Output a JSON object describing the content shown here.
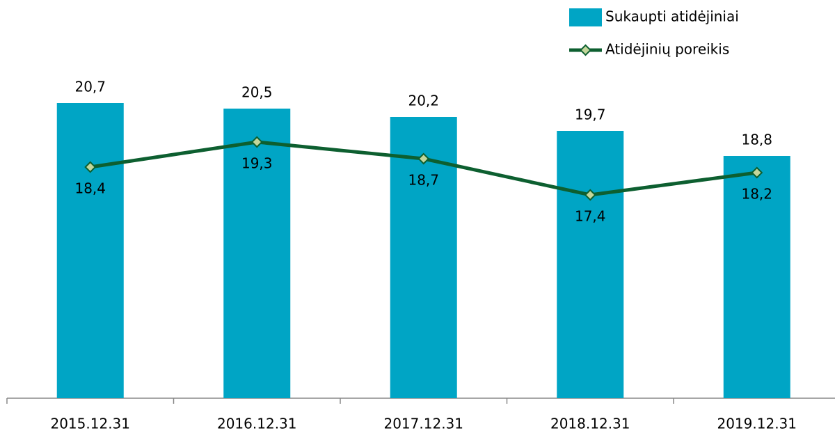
{
  "chart_data": {
    "type": "bar",
    "categories": [
      "2015.12.31",
      "2016.12.31",
      "2017.12.31",
      "2018.12.31",
      "2019.12.31"
    ],
    "series": [
      {
        "name": "Sukaupti atidėjiniai",
        "type": "bar",
        "color": "#00a5c5",
        "values": [
          20.7,
          20.5,
          20.2,
          19.7,
          18.8
        ],
        "value_labels": [
          "20,7",
          "20,5",
          "20,2",
          "19,7",
          "18,8"
        ]
      },
      {
        "name": "Atidėjinių poreikis",
        "type": "line",
        "color": "#0d5f30",
        "values": [
          18.4,
          19.3,
          18.7,
          17.4,
          18.2
        ],
        "value_labels": [
          "18,4",
          "19,3",
          "18,7",
          "17,4",
          "18,2"
        ]
      }
    ],
    "ylim": [
      10.1,
      22
    ],
    "legend": "top-right"
  }
}
